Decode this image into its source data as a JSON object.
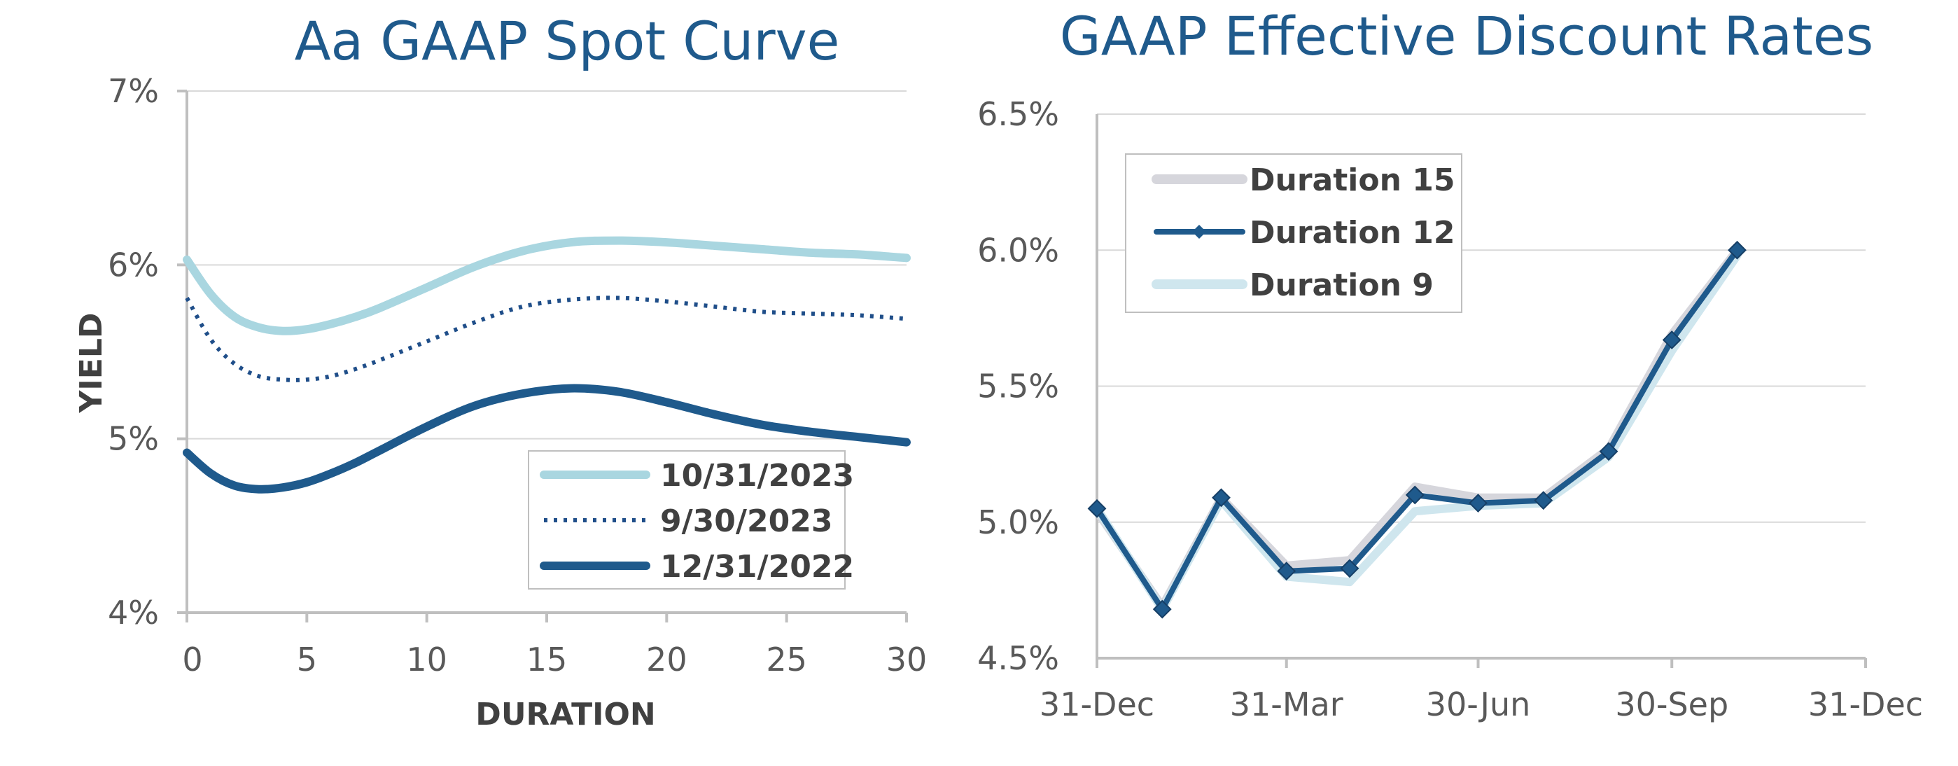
{
  "chart_data": [
    {
      "type": "line",
      "title": "Aa GAAP Spot Curve",
      "xlabel": "DURATION",
      "ylabel": "YIELD",
      "xlim": [
        0,
        30
      ],
      "ylim": [
        4,
        7
      ],
      "xticks": [
        0,
        5,
        10,
        15,
        20,
        25,
        30
      ],
      "xtick_labels": [
        "0",
        "5",
        "10",
        "15",
        "20",
        "25",
        "30"
      ],
      "yticks": [
        4,
        5,
        6,
        7
      ],
      "ytick_labels": [
        "4%",
        "5%",
        "6%",
        "7%"
      ],
      "legend_position": "bottom-right",
      "series": [
        {
          "name": "10/31/2023",
          "color": "#a9d6e0",
          "style": "thick",
          "x": [
            0,
            1,
            2,
            3,
            4,
            5,
            6,
            7,
            8,
            10,
            12,
            14,
            16,
            18,
            20,
            22,
            24,
            26,
            28,
            30
          ],
          "y": [
            6.03,
            5.83,
            5.7,
            5.64,
            5.62,
            5.63,
            5.66,
            5.7,
            5.75,
            5.87,
            5.99,
            6.08,
            6.13,
            6.14,
            6.13,
            6.11,
            6.09,
            6.07,
            6.06,
            6.04
          ]
        },
        {
          "name": "9/30/2023",
          "color": "#1f4e89",
          "style": "dotted",
          "x": [
            0,
            1,
            2,
            3,
            4,
            5,
            6,
            7,
            8,
            10,
            12,
            14,
            16,
            18,
            20,
            22,
            24,
            26,
            28,
            30
          ],
          "y": [
            5.81,
            5.57,
            5.43,
            5.36,
            5.34,
            5.34,
            5.36,
            5.4,
            5.45,
            5.56,
            5.67,
            5.76,
            5.8,
            5.81,
            5.79,
            5.76,
            5.73,
            5.72,
            5.71,
            5.69
          ]
        },
        {
          "name": "12/31/2022",
          "color": "#1f5a8c",
          "style": "thick",
          "x": [
            0,
            1,
            2,
            3,
            4,
            5,
            6,
            7,
            8,
            10,
            12,
            14,
            16,
            18,
            20,
            22,
            24,
            26,
            28,
            30
          ],
          "y": [
            4.92,
            4.8,
            4.73,
            4.71,
            4.72,
            4.75,
            4.8,
            4.86,
            4.93,
            5.07,
            5.19,
            5.26,
            5.29,
            5.27,
            5.21,
            5.14,
            5.08,
            5.04,
            5.01,
            4.98
          ]
        }
      ]
    },
    {
      "type": "line",
      "title": "GAAP Effective Discount Rates",
      "xlabel": "",
      "ylabel": "",
      "x_units": "days since 31-Dec",
      "xlim": [
        0,
        365
      ],
      "ylim": [
        4.5,
        6.5
      ],
      "xticks": [
        0,
        90,
        181,
        273,
        365
      ],
      "xtick_labels": [
        "31-Dec",
        "31-Mar",
        "30-Jun",
        "30-Sep",
        "31-Dec"
      ],
      "yticks": [
        4.5,
        5.0,
        5.5,
        6.0,
        6.5
      ],
      "ytick_labels": [
        "4.5%",
        "5.0%",
        "5.5%",
        "6.0%",
        "6.5%"
      ],
      "legend_position": "top-left",
      "series": [
        {
          "name": "Duration 15",
          "color": "#d6d6dc",
          "marker": "none",
          "x": [
            0,
            31,
            59,
            90,
            120,
            151,
            181,
            212,
            243,
            273,
            304
          ],
          "y": [
            5.04,
            4.69,
            5.09,
            4.84,
            4.86,
            5.13,
            5.09,
            5.09,
            5.27,
            5.69,
            6.0
          ]
        },
        {
          "name": "Duration 12",
          "color": "#1f5a8c",
          "marker": "diamond",
          "x": [
            0,
            31,
            59,
            90,
            120,
            151,
            181,
            212,
            243,
            273,
            304
          ],
          "y": [
            5.05,
            4.68,
            5.09,
            4.82,
            4.83,
            5.1,
            5.07,
            5.08,
            5.26,
            5.67,
            6.0
          ]
        },
        {
          "name": "Duration 9",
          "color": "#cfe6ee",
          "marker": "none",
          "x": [
            0,
            31,
            59,
            90,
            120,
            151,
            181,
            212,
            243,
            273,
            304
          ],
          "y": [
            5.05,
            4.68,
            5.08,
            4.8,
            4.78,
            5.04,
            5.06,
            5.07,
            5.24,
            5.63,
            5.98
          ]
        }
      ]
    }
  ]
}
